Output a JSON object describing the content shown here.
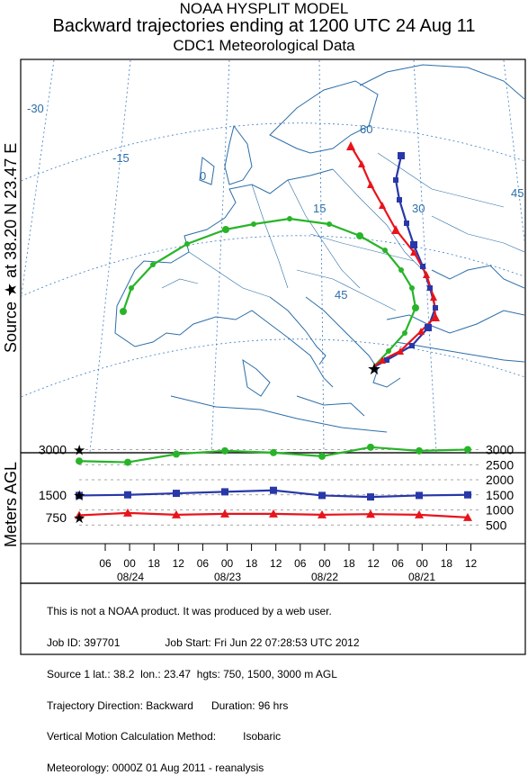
{
  "header": {
    "line1": "NOAA HYSPLIT MODEL",
    "line2": "Backward trajectories ending at 1200 UTC 24 Aug 11",
    "line3": "CDC1 Meteorological Data"
  },
  "map": {
    "side_label": "Source ★ at 38.20 N 23.47 E",
    "lon_labels": [
      "-30",
      "-15",
      "0",
      "15",
      "30",
      "45"
    ],
    "lat_labels": [
      "60",
      "45"
    ],
    "source_marker": "star"
  },
  "height_panel": {
    "ylabel": "Meters AGL",
    "left_ticks": [
      "3000",
      "1500",
      "750"
    ],
    "right_ticks": [
      "3000",
      "2500",
      "2000",
      "1500",
      "1000",
      "500"
    ]
  },
  "time_axis": {
    "hour_ticks": [
      "06",
      "00",
      "18",
      "12",
      "06",
      "00",
      "18",
      "12",
      "06",
      "00",
      "18",
      "12",
      "06",
      "00",
      "18",
      "12"
    ],
    "date_labels": [
      "08/24",
      "08/23",
      "08/22",
      "08/21"
    ]
  },
  "footer": {
    "lines": [
      "This is not a NOAA product. It was produced by a web user.",
      "Job ID: 397701               Job Start: Fri Jun 22 07:28:53 UTC 2012",
      "Source 1 lat.: 38.2  lon.: 23.47  hgts: 750, 1500, 3000 m AGL",
      "Trajectory Direction: Backward      Duration: 96 hrs",
      "Vertical Motion Calculation Method:         Isobaric",
      "Meteorology: 0000Z 01 Aug 2011 - reanalysis"
    ]
  },
  "colors": {
    "trajectory_750": "#e8141c",
    "trajectory_1500": "#2838a8",
    "trajectory_3000": "#28b428",
    "map_lines": "#2c6ea8",
    "graticule": "#3c7cc0"
  },
  "chart_data": {
    "type": "line",
    "x_label_format": "hour / date (UTC), backward",
    "x_hours_before_end": [
      96,
      84,
      72,
      60,
      48,
      36,
      24,
      12,
      0
    ],
    "series": [
      {
        "name": "750",
        "values": [
          820,
          900,
          840,
          870,
          870,
          840,
          860,
          840,
          750
        ]
      },
      {
        "name": "1500",
        "values": [
          1480,
          1500,
          1550,
          1600,
          1650,
          1480,
          1430,
          1480,
          1500
        ]
      },
      {
        "name": "3000",
        "values": [
          2620,
          2580,
          2850,
          2960,
          2900,
          2780,
          3080,
          2960,
          3000
        ]
      }
    ]
  }
}
